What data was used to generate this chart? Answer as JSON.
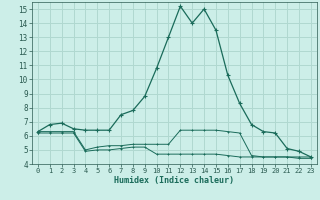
{
  "xlabel": "Humidex (Indice chaleur)",
  "background_color": "#cceee8",
  "grid_color": "#b0d8d0",
  "line_color": "#1a6b5a",
  "xlim": [
    -0.5,
    23.5
  ],
  "ylim": [
    4,
    15.5
  ],
  "xticks": [
    0,
    1,
    2,
    3,
    4,
    5,
    6,
    7,
    8,
    9,
    10,
    11,
    12,
    13,
    14,
    15,
    16,
    17,
    18,
    19,
    20,
    21,
    22,
    23
  ],
  "yticks": [
    4,
    5,
    6,
    7,
    8,
    9,
    10,
    11,
    12,
    13,
    14,
    15
  ],
  "line1_x": [
    0,
    1,
    2,
    3,
    4,
    5,
    6,
    7,
    8,
    9,
    10,
    11,
    12,
    13,
    14,
    15,
    16,
    17,
    18,
    19,
    20,
    21,
    22,
    23
  ],
  "line1_y": [
    6.3,
    6.8,
    6.9,
    6.5,
    6.4,
    6.4,
    6.4,
    7.5,
    7.8,
    8.8,
    10.8,
    13.0,
    15.2,
    14.0,
    15.0,
    13.5,
    10.3,
    8.3,
    6.8,
    6.3,
    6.2,
    5.1,
    4.9,
    4.5
  ],
  "line2_x": [
    0,
    1,
    2,
    3,
    4,
    5,
    6,
    7,
    8,
    9,
    10,
    11,
    12,
    13,
    14,
    15,
    16,
    17,
    18,
    19,
    20,
    21,
    22,
    23
  ],
  "line2_y": [
    6.3,
    6.3,
    6.3,
    6.3,
    5.0,
    5.2,
    5.3,
    5.3,
    5.4,
    5.4,
    5.4,
    5.4,
    6.4,
    6.4,
    6.4,
    6.4,
    6.3,
    6.2,
    4.6,
    4.5,
    4.5,
    4.5,
    4.5,
    4.5
  ],
  "line3_x": [
    0,
    1,
    2,
    3,
    4,
    5,
    6,
    7,
    8,
    9,
    10,
    11,
    12,
    13,
    14,
    15,
    16,
    17,
    18,
    19,
    20,
    21,
    22,
    23
  ],
  "line3_y": [
    6.2,
    6.2,
    6.2,
    6.2,
    4.9,
    5.0,
    5.0,
    5.1,
    5.2,
    5.2,
    4.7,
    4.7,
    4.7,
    4.7,
    4.7,
    4.7,
    4.6,
    4.5,
    4.5,
    4.5,
    4.5,
    4.5,
    4.4,
    4.4
  ]
}
